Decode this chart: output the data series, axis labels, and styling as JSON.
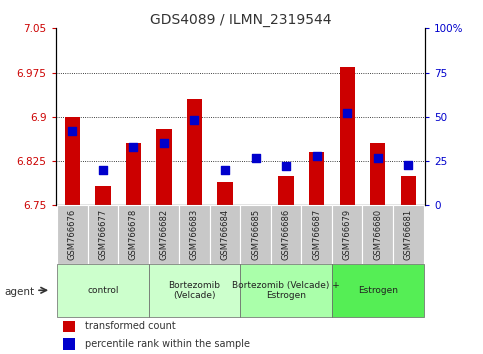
{
  "title": "GDS4089 / ILMN_2319544",
  "samples": [
    "GSM766676",
    "GSM766677",
    "GSM766678",
    "GSM766682",
    "GSM766683",
    "GSM766684",
    "GSM766685",
    "GSM766686",
    "GSM766687",
    "GSM766679",
    "GSM766680",
    "GSM766681"
  ],
  "transformed_count": [
    6.9,
    6.783,
    6.855,
    6.88,
    6.93,
    6.79,
    6.75,
    6.8,
    6.84,
    6.985,
    6.855,
    6.8
  ],
  "percentile_rank": [
    42,
    20,
    33,
    35,
    48,
    20,
    27,
    22,
    28,
    52,
    27,
    23
  ],
  "ylim_left": [
    6.75,
    7.05
  ],
  "ylim_right": [
    0,
    100
  ],
  "yticks_left": [
    6.75,
    6.825,
    6.9,
    6.975,
    7.05
  ],
  "yticks_right": [
    0,
    25,
    50,
    75,
    100
  ],
  "ytick_labels_left": [
    "6.75",
    "6.825",
    "6.9",
    "6.975",
    "7.05"
  ],
  "ytick_labels_right": [
    "0",
    "25",
    "50",
    "75",
    "100%"
  ],
  "gridlines": [
    6.825,
    6.9,
    6.975
  ],
  "bar_color": "#cc0000",
  "dot_color": "#0000cc",
  "bar_width": 0.5,
  "dot_size": 40,
  "groups": [
    {
      "label": "control",
      "start": 0,
      "end": 2,
      "color": "#ccffcc"
    },
    {
      "label": "Bortezomib\n(Velcade)",
      "start": 3,
      "end": 5,
      "color": "#ccffcc"
    },
    {
      "label": "Bortezomib (Velcade) +\nEstrogen",
      "start": 6,
      "end": 8,
      "color": "#aaffaa"
    },
    {
      "label": "Estrogen",
      "start": 9,
      "end": 11,
      "color": "#55ee55"
    }
  ],
  "legend_transformed": "transformed count",
  "legend_percentile": "percentile rank within the sample",
  "bar_color_left": "#cc0000",
  "dot_color_blue": "#0000cc",
  "xtick_bg": "#c8c8c8",
  "agent_arrow_color": "#333333"
}
